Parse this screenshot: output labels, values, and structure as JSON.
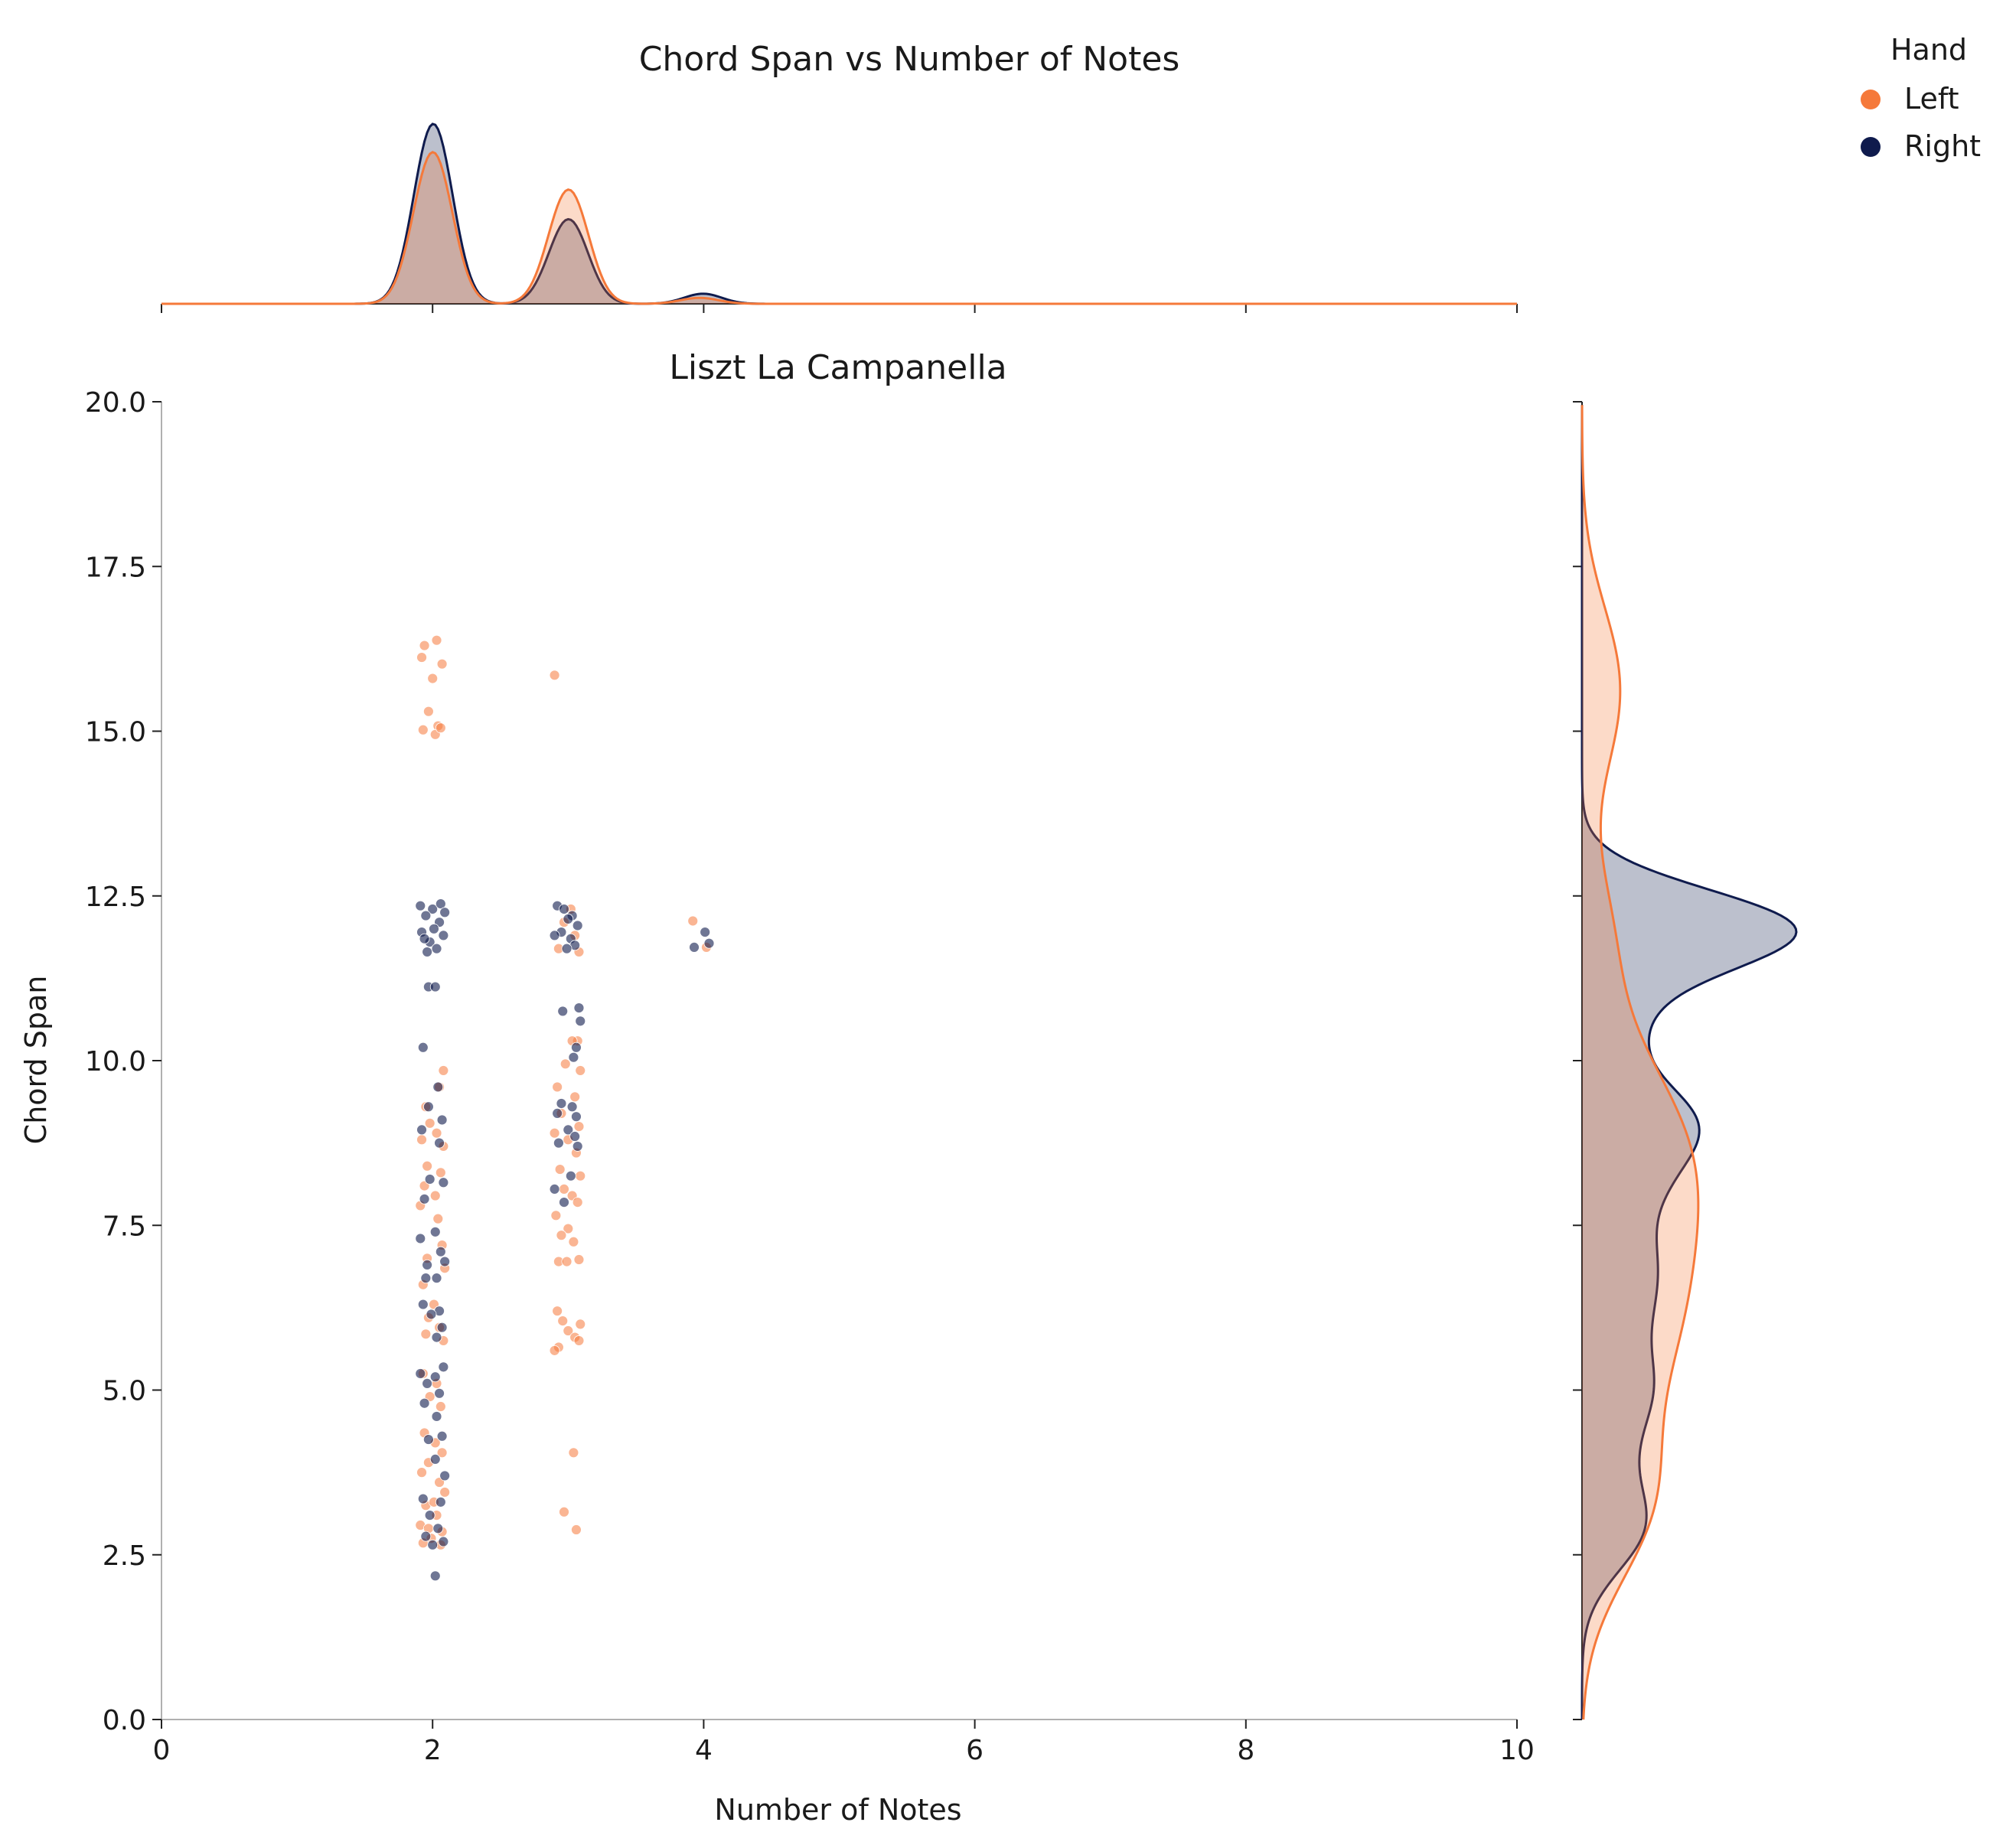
{
  "chart_data": {
    "type": "scatter",
    "suptitle": "Chord Span vs  Number of Notes",
    "title": "Liszt La Campanella",
    "xlabel": "Number of Notes",
    "ylabel": "Chord Span",
    "xlim": [
      0,
      10
    ],
    "ylim": [
      0,
      20
    ],
    "xticks": [
      "0",
      "2",
      "4",
      "6",
      "8",
      "10"
    ],
    "yticks": [
      "0.0",
      "2.5",
      "5.0",
      "7.5",
      "10.0",
      "12.5",
      "15.0",
      "17.5",
      "20.0"
    ],
    "grid": false,
    "marginals": "kde",
    "legend": {
      "title": "Hand",
      "placement": "top-right outside"
    },
    "series": [
      {
        "name": "Left",
        "color": "#F5793A",
        "points": [
          [
            1.94,
            16.3
          ],
          [
            2.03,
            16.38
          ],
          [
            1.92,
            16.12
          ],
          [
            2.07,
            16.02
          ],
          [
            2.0,
            15.8
          ],
          [
            1.97,
            15.3
          ],
          [
            2.04,
            15.08
          ],
          [
            1.93,
            15.02
          ],
          [
            2.02,
            14.95
          ],
          [
            2.06,
            15.05
          ],
          [
            2.9,
            15.85
          ],
          [
            2.08,
            9.85
          ],
          [
            2.05,
            9.6
          ],
          [
            1.95,
            9.3
          ],
          [
            1.98,
            9.05
          ],
          [
            2.03,
            8.9
          ],
          [
            1.92,
            8.8
          ],
          [
            2.08,
            8.7
          ],
          [
            1.96,
            8.4
          ],
          [
            2.06,
            8.3
          ],
          [
            1.94,
            8.1
          ],
          [
            2.02,
            7.95
          ],
          [
            1.91,
            7.8
          ],
          [
            2.04,
            7.6
          ],
          [
            2.07,
            7.2
          ],
          [
            1.96,
            7.0
          ],
          [
            2.09,
            6.85
          ],
          [
            1.93,
            6.6
          ],
          [
            2.01,
            6.3
          ],
          [
            1.97,
            6.1
          ],
          [
            2.05,
            5.95
          ],
          [
            1.95,
            5.85
          ],
          [
            2.08,
            5.75
          ],
          [
            1.93,
            5.25
          ],
          [
            2.03,
            5.1
          ],
          [
            1.98,
            4.9
          ],
          [
            2.06,
            4.75
          ],
          [
            1.94,
            4.35
          ],
          [
            2.02,
            4.2
          ],
          [
            2.07,
            4.05
          ],
          [
            1.97,
            3.9
          ],
          [
            1.92,
            3.75
          ],
          [
            2.05,
            3.6
          ],
          [
            2.09,
            3.45
          ],
          [
            1.95,
            3.25
          ],
          [
            2.03,
            3.1
          ],
          [
            1.91,
            2.95
          ],
          [
            2.07,
            2.85
          ],
          [
            1.99,
            2.75
          ],
          [
            1.93,
            2.68
          ],
          [
            2.06,
            2.65
          ],
          [
            1.97,
            2.9
          ],
          [
            2.01,
            3.3
          ],
          [
            2.93,
            11.7
          ],
          [
            3.05,
            11.9
          ],
          [
            3.08,
            11.65
          ],
          [
            2.97,
            12.1
          ],
          [
            3.02,
            12.3
          ],
          [
            3.07,
            10.3
          ],
          [
            3.03,
            10.3
          ],
          [
            2.98,
            9.95
          ],
          [
            3.09,
            9.85
          ],
          [
            2.92,
            9.6
          ],
          [
            3.05,
            9.45
          ],
          [
            2.95,
            9.2
          ],
          [
            3.08,
            9.0
          ],
          [
            2.9,
            8.9
          ],
          [
            3.0,
            8.8
          ],
          [
            3.06,
            8.6
          ],
          [
            2.94,
            8.35
          ],
          [
            3.09,
            8.25
          ],
          [
            2.97,
            8.05
          ],
          [
            3.03,
            7.95
          ],
          [
            3.07,
            7.85
          ],
          [
            2.91,
            7.65
          ],
          [
            3.0,
            7.45
          ],
          [
            2.95,
            7.35
          ],
          [
            3.04,
            7.25
          ],
          [
            2.93,
            6.95
          ],
          [
            3.08,
            6.98
          ],
          [
            2.99,
            6.95
          ],
          [
            2.92,
            6.2
          ],
          [
            2.96,
            6.05
          ],
          [
            3.09,
            6.0
          ],
          [
            3.0,
            5.9
          ],
          [
            3.05,
            5.8
          ],
          [
            3.08,
            5.75
          ],
          [
            2.93,
            5.65
          ],
          [
            2.9,
            5.6
          ],
          [
            3.04,
            4.05
          ],
          [
            2.97,
            3.15
          ],
          [
            3.06,
            2.88
          ],
          [
            3.92,
            12.12
          ],
          [
            4.02,
            11.72
          ]
        ]
      },
      {
        "name": "Right",
        "color": "#0F1B4D",
        "points": [
          [
            2.0,
            12.3
          ],
          [
            1.95,
            12.2
          ],
          [
            2.05,
            12.1
          ],
          [
            1.92,
            11.95
          ],
          [
            2.08,
            11.9
          ],
          [
            1.98,
            11.8
          ],
          [
            2.03,
            11.7
          ],
          [
            1.91,
            12.35
          ],
          [
            2.06,
            12.38
          ],
          [
            1.96,
            11.65
          ],
          [
            2.01,
            12.0
          ],
          [
            1.94,
            11.85
          ],
          [
            2.09,
            12.25
          ],
          [
            1.97,
            11.12
          ],
          [
            2.02,
            11.12
          ],
          [
            1.93,
            10.2
          ],
          [
            2.04,
            9.6
          ],
          [
            1.97,
            9.3
          ],
          [
            2.07,
            9.1
          ],
          [
            1.92,
            8.95
          ],
          [
            2.05,
            8.75
          ],
          [
            1.98,
            8.2
          ],
          [
            2.08,
            8.15
          ],
          [
            1.94,
            7.9
          ],
          [
            2.02,
            7.4
          ],
          [
            1.91,
            7.3
          ],
          [
            2.06,
            7.1
          ],
          [
            1.96,
            6.9
          ],
          [
            2.09,
            6.95
          ],
          [
            1.95,
            6.7
          ],
          [
            2.03,
            6.7
          ],
          [
            1.93,
            6.3
          ],
          [
            2.05,
            6.2
          ],
          [
            1.99,
            6.15
          ],
          [
            2.07,
            5.95
          ],
          [
            2.03,
            5.8
          ],
          [
            1.91,
            5.25
          ],
          [
            2.02,
            5.2
          ],
          [
            2.08,
            5.35
          ],
          [
            1.96,
            5.1
          ],
          [
            2.05,
            4.95
          ],
          [
            1.94,
            4.8
          ],
          [
            2.03,
            4.6
          ],
          [
            2.07,
            4.3
          ],
          [
            1.97,
            4.25
          ],
          [
            2.02,
            3.95
          ],
          [
            2.09,
            3.7
          ],
          [
            1.93,
            3.35
          ],
          [
            2.06,
            3.3
          ],
          [
            1.98,
            3.1
          ],
          [
            2.04,
            2.9
          ],
          [
            1.95,
            2.78
          ],
          [
            2.08,
            2.7
          ],
          [
            2.0,
            2.65
          ],
          [
            2.02,
            2.18
          ],
          [
            2.92,
            12.35
          ],
          [
            2.97,
            12.3
          ],
          [
            3.03,
            12.2
          ],
          [
            3.07,
            12.05
          ],
          [
            2.95,
            11.95
          ],
          [
            3.02,
            11.85
          ],
          [
            2.9,
            11.9
          ],
          [
            3.05,
            11.75
          ],
          [
            3.0,
            12.15
          ],
          [
            2.99,
            11.7
          ],
          [
            2.96,
            10.75
          ],
          [
            3.08,
            10.8
          ],
          [
            3.09,
            10.6
          ],
          [
            3.06,
            10.2
          ],
          [
            3.04,
            10.05
          ],
          [
            2.95,
            9.35
          ],
          [
            3.03,
            9.3
          ],
          [
            3.06,
            9.15
          ],
          [
            2.92,
            9.2
          ],
          [
            3.0,
            8.95
          ],
          [
            3.05,
            8.85
          ],
          [
            2.93,
            8.75
          ],
          [
            3.07,
            8.7
          ],
          [
            3.02,
            8.25
          ],
          [
            2.9,
            8.05
          ],
          [
            2.97,
            7.85
          ],
          [
            4.01,
            11.95
          ],
          [
            3.93,
            11.72
          ],
          [
            4.04,
            11.78
          ]
        ]
      }
    ]
  }
}
